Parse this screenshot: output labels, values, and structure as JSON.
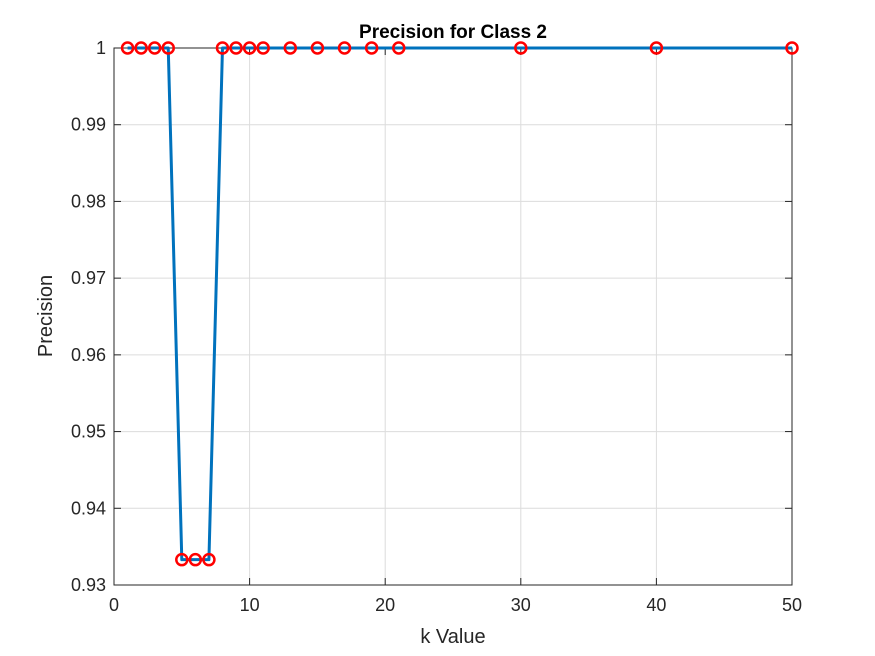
{
  "chart_data": {
    "type": "line",
    "title": "Precision for Class 2",
    "xlabel": "k Value",
    "ylabel": "Precision",
    "xlim": [
      0,
      50
    ],
    "ylim": [
      0.93,
      1.0
    ],
    "xticks": [
      0,
      10,
      20,
      30,
      40,
      50
    ],
    "xtick_labels": [
      "0",
      "10",
      "20",
      "30",
      "40",
      "50"
    ],
    "yticks": [
      0.93,
      0.94,
      0.95,
      0.96,
      0.97,
      0.98,
      0.99,
      1.0
    ],
    "ytick_labels": [
      "0.93",
      "0.94",
      "0.95",
      "0.96",
      "0.97",
      "0.98",
      "0.99",
      "1"
    ],
    "grid": true,
    "series": [
      {
        "x": [
          1,
          2,
          3,
          4,
          5,
          6,
          7,
          8,
          9,
          10,
          11,
          13,
          15,
          17,
          19,
          21,
          30,
          40,
          50
        ],
        "y": [
          1,
          1,
          1,
          1,
          0.9333,
          0.9333,
          0.9333,
          1,
          1,
          1,
          1,
          1,
          1,
          1,
          1,
          1,
          1,
          1,
          1
        ],
        "line_color": "#0072BD",
        "marker": "circle",
        "marker_color": "#FF0000"
      }
    ]
  }
}
